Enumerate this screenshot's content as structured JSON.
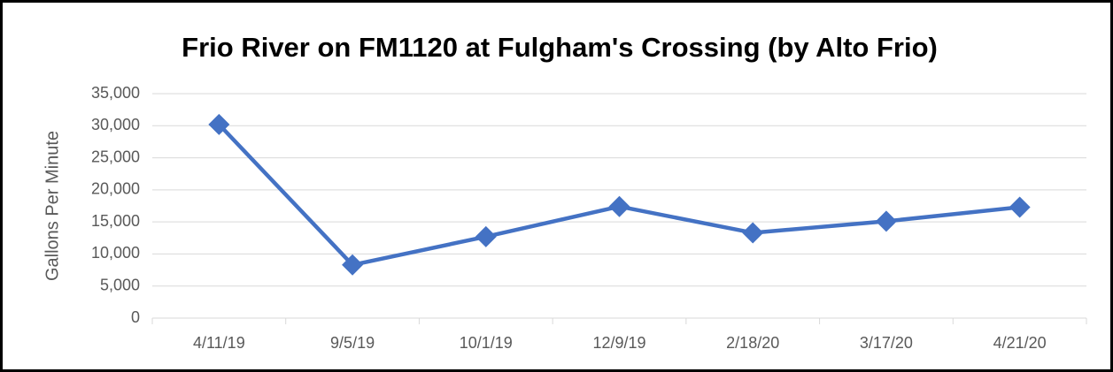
{
  "chart_data": {
    "type": "line",
    "title": "Frio River on FM1120 at Fulgham's Crossing (by Alto Frio)",
    "y_label": "Gallons Per Minute",
    "categories": [
      "4/11/19",
      "9/5/19",
      "10/1/19",
      "12/9/19",
      "2/18/20",
      "3/17/20",
      "4/21/20"
    ],
    "series": [
      {
        "name": "Gallons Per Minute",
        "color": "#4472c4",
        "values": [
          30200,
          8300,
          12700,
          17400,
          13300,
          15100,
          17300
        ]
      }
    ],
    "ylim": [
      0,
      35000
    ],
    "yticks": [
      0,
      {
        "value": 5000,
        "label": "5,000"
      },
      {
        "value": 10000,
        "label": "10,000"
      },
      {
        "value": 15000,
        "label": "15,000"
      },
      {
        "value": 20000,
        "label": "20,000"
      },
      {
        "value": 25000,
        "label": "25,000"
      },
      {
        "value": 30000,
        "label": "30,000"
      },
      {
        "value": 35000,
        "label": "35,000"
      }
    ],
    "grid": true
  }
}
